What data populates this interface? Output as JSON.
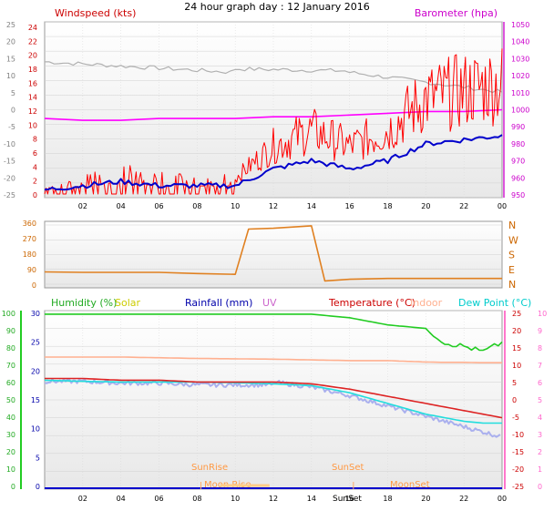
{
  "title": "24 hour graph day : 12 January 2016",
  "x_ticks": [
    "02",
    "04",
    "06",
    "08",
    "10",
    "12",
    "14",
    "16",
    "18",
    "20",
    "22",
    "00"
  ],
  "top_panel": {
    "label_left": "Windspeed (kts)",
    "label_right": "Barometer (hpa)",
    "left_axis_a": [
      "24",
      "22",
      "20",
      "18",
      "16",
      "14",
      "12",
      "10",
      "8",
      "6",
      "4",
      "2",
      "0"
    ],
    "left_axis_b": [
      "25",
      "20",
      "15",
      "10",
      "5",
      "0",
      "-5",
      "-10",
      "-15",
      "-20",
      "-25"
    ],
    "right_axis": [
      "1050",
      "1040",
      "1030",
      "1020",
      "1010",
      "1000",
      "990",
      "980",
      "970",
      "960",
      "950"
    ],
    "colors": {
      "wind": "#ff0000",
      "avg_wind": "#0000cc",
      "barometer": "#ff00ff",
      "temp_gray": "#b0b0b0"
    }
  },
  "middle_panel": {
    "left_axis": [
      "360",
      "270",
      "180",
      "90",
      "0"
    ],
    "right_axis": [
      "N",
      "W",
      "S",
      "E",
      "N"
    ],
    "color": "#e08020"
  },
  "bottom_panel": {
    "labels": {
      "humidity": "Humidity (%)",
      "solar": "Solar",
      "rainfall": "Rainfall (mm)",
      "uv": "UV",
      "temperature": "Temperature (°C)",
      "indoor": "Indoor",
      "dewpoint": "Dew Point (°C)"
    },
    "hum_axis": [
      "100",
      "90",
      "80",
      "70",
      "60",
      "50",
      "40",
      "30",
      "20",
      "10",
      "0"
    ],
    "rain_axis": [
      "30",
      "25",
      "20",
      "15",
      "10",
      "5",
      "0"
    ],
    "temp_axis": [
      "25",
      "20",
      "15",
      "10",
      "5",
      "0",
      "-5",
      "-10",
      "-15",
      "-20",
      "-25"
    ],
    "uv_axis": [
      "10",
      "9",
      "8",
      "7",
      "6",
      "5",
      "4",
      "3",
      "2",
      "1",
      "0"
    ],
    "annotations": {
      "sunrise": "SunRise",
      "sunset": "SunSet",
      "moonrise": "Moon Rise",
      "moonset": "MoonSet",
      "sunset_tick": "SunSet"
    },
    "colors": {
      "humidity": "#22cc22",
      "temperature": "#dd2222",
      "dewpoint": "#22dddd",
      "indoor": "#ffb090",
      "windchill": "#aab0ee",
      "rain": "#0000cc"
    }
  },
  "chart_data": [
    {
      "type": "line",
      "title": "24 hour graph day : 12 January 2016",
      "xlabel": "",
      "ylabel": "Windspeed (kts)",
      "y2label": "Barometer (hpa)",
      "ylim": [
        0,
        25
      ],
      "y2lim": [
        950,
        1050
      ],
      "x": [
        0,
        2,
        4,
        6,
        8,
        10,
        12,
        14,
        16,
        18,
        20,
        22,
        24
      ],
      "series": [
        {
          "name": "Windspeed (kts)",
          "values": [
            1,
            2,
            3,
            2,
            2,
            2,
            6,
            8,
            6,
            8,
            12,
            13,
            14
          ]
        },
        {
          "name": "Barometer (hpa)",
          "values": [
            995,
            994,
            994,
            995,
            995,
            995,
            996,
            996,
            997,
            998,
            999,
            999,
            1000
          ]
        }
      ]
    },
    {
      "type": "line",
      "ylim": [
        0,
        360
      ],
      "x": [
        0,
        2,
        4,
        6,
        8,
        10,
        10.7,
        12,
        14,
        14.7,
        16,
        18,
        20,
        22,
        24
      ],
      "series": [
        {
          "name": "Wind direction",
          "values": [
            75,
            72,
            72,
            72,
            65,
            60,
            335,
            340,
            355,
            20,
            30,
            35,
            35,
            35,
            35
          ]
        }
      ]
    },
    {
      "type": "line",
      "ylim": [
        0,
        100
      ],
      "y2lim": [
        -25,
        25
      ],
      "x": [
        0,
        2,
        4,
        6,
        8,
        10,
        12,
        14,
        16,
        18,
        20,
        21,
        22,
        23,
        24
      ],
      "series": [
        {
          "name": "Humidity (%)",
          "values": [
            98,
            98,
            98,
            98,
            98,
            98,
            98,
            98,
            96,
            92,
            90,
            82,
            80,
            77,
            82
          ]
        },
        {
          "name": "Temperature (°C)",
          "values": [
            6,
            6,
            5.5,
            5.5,
            5,
            5,
            5,
            4.5,
            3,
            1,
            -1,
            -2,
            -3,
            -4,
            -5
          ]
        },
        {
          "name": "Dew Point (°C)",
          "values": [
            5.5,
            5.2,
            5,
            5,
            5,
            4.8,
            4.5,
            4,
            2,
            -1,
            -4,
            -5,
            -6,
            -6.5,
            -6.5
          ]
        },
        {
          "name": "Indoor",
          "values": [
            12,
            12,
            12,
            11.8,
            11.6,
            11.5,
            11.4,
            11.2,
            11,
            11,
            10.6,
            10.5,
            10.5,
            10.4,
            10.4
          ]
        },
        {
          "name": "Rainfall (mm)",
          "values": [
            0,
            0,
            0,
            0,
            0,
            0,
            0,
            0,
            0,
            0,
            0,
            0,
            0,
            0,
            0
          ]
        }
      ]
    }
  ]
}
